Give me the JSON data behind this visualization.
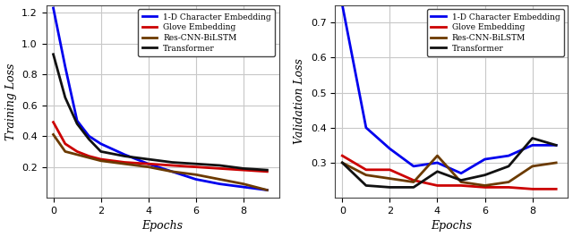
{
  "train_epochs": [
    0,
    0.5,
    1,
    1.5,
    2,
    3,
    4,
    5,
    6,
    7,
    8,
    9
  ],
  "train_blue": [
    1.23,
    0.85,
    0.5,
    0.4,
    0.35,
    0.28,
    0.22,
    0.17,
    0.12,
    0.09,
    0.07,
    0.05
  ],
  "train_red": [
    0.49,
    0.35,
    0.3,
    0.27,
    0.25,
    0.23,
    0.22,
    0.21,
    0.2,
    0.19,
    0.18,
    0.17
  ],
  "train_brown": [
    0.41,
    0.3,
    0.28,
    0.26,
    0.24,
    0.22,
    0.2,
    0.17,
    0.15,
    0.12,
    0.09,
    0.05
  ],
  "train_black": [
    0.93,
    0.65,
    0.48,
    0.38,
    0.3,
    0.27,
    0.25,
    0.23,
    0.22,
    0.21,
    0.19,
    0.18
  ],
  "val_epochs": [
    0,
    1,
    2,
    3,
    4,
    5,
    6,
    7,
    8,
    9
  ],
  "val_blue": [
    0.75,
    0.4,
    0.34,
    0.29,
    0.3,
    0.27,
    0.31,
    0.32,
    0.35,
    0.35
  ],
  "val_red": [
    0.32,
    0.28,
    0.28,
    0.25,
    0.235,
    0.235,
    0.23,
    0.23,
    0.225,
    0.225
  ],
  "val_brown": [
    0.3,
    0.265,
    0.255,
    0.245,
    0.32,
    0.245,
    0.235,
    0.245,
    0.29,
    0.3
  ],
  "val_black": [
    0.3,
    0.235,
    0.23,
    0.23,
    0.275,
    0.25,
    0.265,
    0.29,
    0.37,
    0.35
  ],
  "colors": {
    "blue": "#0000ee",
    "red": "#cc0000",
    "brown": "#6b3a00",
    "black": "#111111"
  },
  "legend_labels": [
    "1-D Character Embedding",
    "Glove Embedding",
    "Res-CNN-BiLSTM",
    "Transformer"
  ],
  "ylabel_left": "Training Loss",
  "ylabel_right": "Validation Loss",
  "xlabel": "Epochs",
  "ylim_left": [
    0.0,
    1.25
  ],
  "ylim_right": [
    0.2,
    0.75
  ],
  "yticks_left": [
    0.2,
    0.4,
    0.6,
    0.8,
    1.0,
    1.2
  ],
  "yticks_right": [
    0.3,
    0.4,
    0.5,
    0.6,
    0.7
  ],
  "xticks": [
    0,
    2,
    4,
    6,
    8
  ],
  "linewidth": 2.0,
  "background_color": "#ffffff",
  "grid_color": "#c8c8c8"
}
